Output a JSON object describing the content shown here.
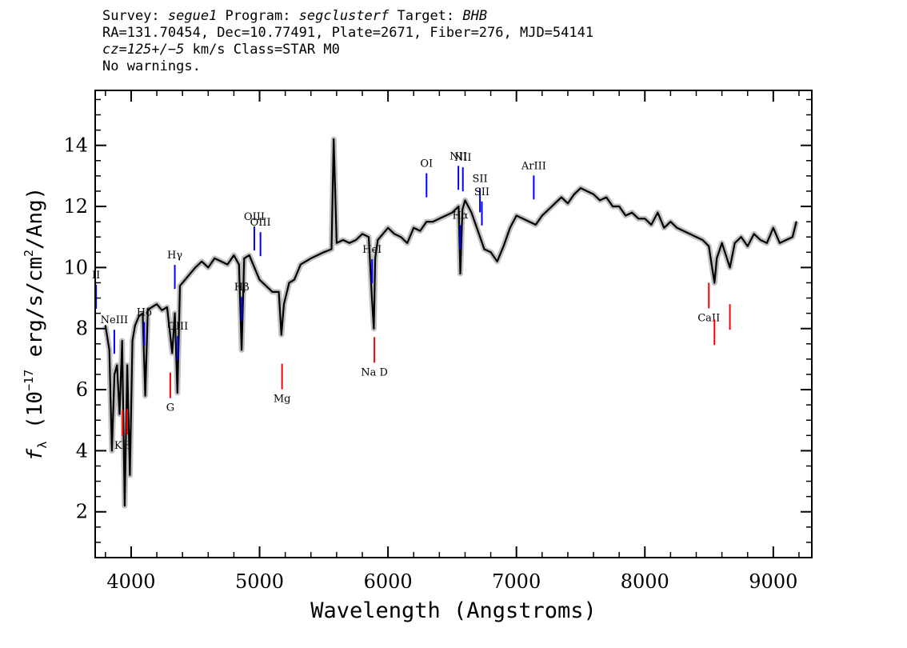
{
  "header": {
    "line1": {
      "survey_label": "Survey: ",
      "survey": "segue1",
      "program_label": " Program: ",
      "program": "segclusterf",
      "target_label": " Target: ",
      "target": "BHB"
    },
    "line2": "RA=131.70454, Dec=10.77491, Plate=2671, Fiber=276, MJD=54141",
    "line3": {
      "cz": "cz=125+/−5",
      "rest": " km/s Class=STAR M0"
    },
    "line4": "No warnings."
  },
  "chart_data": {
    "type": "line",
    "xlabel": "Wavelength (Angstroms)",
    "ylabel_parts": {
      "f": "f",
      "lambda": "λ",
      "open": " (10",
      "exp": "−17",
      "mid": " erg/s/cm",
      "sq": "2",
      "end": "/Ang)"
    },
    "xlim": [
      3720,
      9300
    ],
    "ylim": [
      0.5,
      15.8
    ],
    "x_ticks": [
      4000,
      5000,
      6000,
      7000,
      8000,
      9000
    ],
    "x_tick_labels": [
      "4000",
      "5000",
      "6000",
      "7000",
      "8000",
      "9000"
    ],
    "y_ticks": [
      2,
      4,
      6,
      8,
      10,
      12,
      14
    ],
    "y_tick_labels": [
      "2",
      "4",
      "6",
      "8",
      "10",
      "12",
      "14"
    ],
    "series": [
      {
        "color": "#000000",
        "x": [
          3800,
          3830,
          3850,
          3870,
          3890,
          3910,
          3930,
          3950,
          3970,
          3990,
          4010,
          4030,
          4060,
          4090,
          4110,
          4130,
          4160,
          4200,
          4240,
          4280,
          4320,
          4340,
          4360,
          4380,
          4420,
          4460,
          4500,
          4550,
          4600,
          4650,
          4700,
          4750,
          4800,
          4840,
          4860,
          4880,
          4920,
          4960,
          5000,
          5050,
          5100,
          5150,
          5170,
          5190,
          5230,
          5270,
          5320,
          5400,
          5450,
          5500,
          5560,
          5577,
          5600,
          5650,
          5700,
          5750,
          5800,
          5850,
          5875,
          5890,
          5900,
          5920,
          5960,
          6000,
          6050,
          6100,
          6150,
          6200,
          6250,
          6300,
          6350,
          6400,
          6450,
          6500,
          6550,
          6563,
          6580,
          6600,
          6650,
          6700,
          6750,
          6800,
          6850,
          6900,
          6950,
          7000,
          7050,
          7100,
          7150,
          7200,
          7250,
          7300,
          7350,
          7400,
          7450,
          7500,
          7550,
          7600,
          7650,
          7700,
          7750,
          7800,
          7850,
          7900,
          7950,
          8000,
          8050,
          8100,
          8150,
          8200,
          8250,
          8300,
          8350,
          8400,
          8450,
          8498,
          8542,
          8560,
          8600,
          8662,
          8700,
          8750,
          8800,
          8850,
          8900,
          8950,
          9000,
          9050,
          9100,
          9150,
          9180
        ],
        "y": [
          8.1,
          7.3,
          4.0,
          6.5,
          6.8,
          5.2,
          7.6,
          2.2,
          6.8,
          3.2,
          7.6,
          8.1,
          8.4,
          8.5,
          5.8,
          8.6,
          8.7,
          8.8,
          8.6,
          8.7,
          7.2,
          8.5,
          5.9,
          9.4,
          9.6,
          9.8,
          10.0,
          10.2,
          10.0,
          10.3,
          10.2,
          10.1,
          10.4,
          10.1,
          7.3,
          10.3,
          10.4,
          10.0,
          9.6,
          9.4,
          9.2,
          9.2,
          7.8,
          8.8,
          9.5,
          9.6,
          10.1,
          10.3,
          10.4,
          10.5,
          10.6,
          14.2,
          10.8,
          10.9,
          10.8,
          10.9,
          11.1,
          11.0,
          9.0,
          8.0,
          10.3,
          10.9,
          11.1,
          11.3,
          11.1,
          11.0,
          10.8,
          11.3,
          11.2,
          11.5,
          11.5,
          11.6,
          11.7,
          11.8,
          12.0,
          9.8,
          11.9,
          12.2,
          11.8,
          11.2,
          10.6,
          10.5,
          10.2,
          10.7,
          11.3,
          11.7,
          11.6,
          11.5,
          11.4,
          11.7,
          11.9,
          12.1,
          12.3,
          12.1,
          12.4,
          12.6,
          12.5,
          12.4,
          12.2,
          12.3,
          12.0,
          12.0,
          11.7,
          11.8,
          11.6,
          11.6,
          11.4,
          11.8,
          11.3,
          11.5,
          11.3,
          11.2,
          11.1,
          11.0,
          10.9,
          10.7,
          9.5,
          10.3,
          10.8,
          10.0,
          10.8,
          11.0,
          10.7,
          11.1,
          10.9,
          10.8,
          11.3,
          10.8,
          10.9,
          11.0,
          11.5
        ]
      }
    ],
    "line_markers_blue": [
      {
        "label": "II",
        "x": 3727
      },
      {
        "label": "NeIII",
        "x": 3869
      },
      {
        "label": "Hδ",
        "x": 4102
      },
      {
        "label": "Hγ",
        "x": 4340
      },
      {
        "label": "OIII",
        "x": 4363
      },
      {
        "label": "Hβ",
        "x": 4861
      },
      {
        "label": "OIII",
        "x": 4959
      },
      {
        "label": "OIII",
        "x": 5007
      },
      {
        "label": "HeI",
        "x": 5876
      },
      {
        "label": "OI",
        "x": 6300
      },
      {
        "label": "NII",
        "x": 6548
      },
      {
        "label": "Hα",
        "x": 6563
      },
      {
        "label": "NII",
        "x": 6583
      },
      {
        "label": "SII",
        "x": 6716
      },
      {
        "label": "SII",
        "x": 6731
      },
      {
        "label": "ArIII",
        "x": 7135
      }
    ],
    "line_markers_red": [
      {
        "label": "KH",
        "x": 3934
      },
      {
        "label": "",
        "x": 3969
      },
      {
        "label": "G",
        "x": 4305
      },
      {
        "label": "Mg",
        "x": 5175
      },
      {
        "label": "Na D",
        "x": 5894
      },
      {
        "label": "CaII",
        "x": 8498
      },
      {
        "label": "",
        "x": 8542
      },
      {
        "label": "",
        "x": 8662
      }
    ],
    "colors": {
      "flux": "#000000",
      "noise": "#c0c0c0",
      "emission": "#0000ff",
      "absorption": "#ff0000"
    }
  }
}
